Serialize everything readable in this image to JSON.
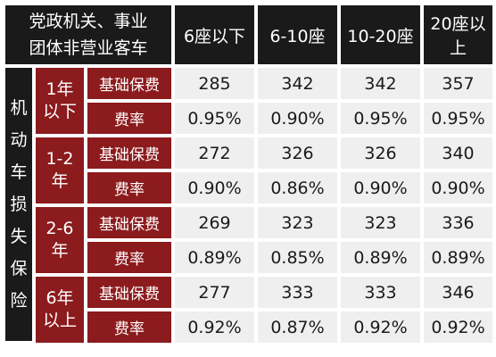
{
  "header": {
    "corner_line1": "党政机关、事业",
    "corner_line2": "团体非营业客车",
    "columns": [
      "6座以下",
      "6-10座",
      "10-20座",
      "20座以上"
    ]
  },
  "side_label": [
    "机",
    "动",
    "车",
    "损",
    "失",
    "保",
    "险"
  ],
  "groups": [
    {
      "age_line1": "1年",
      "age_line2": "以下",
      "rows": [
        {
          "label": "基础保费",
          "values": [
            "285",
            "342",
            "342",
            "357"
          ]
        },
        {
          "label": "费率",
          "values": [
            "0.95%",
            "0.90%",
            "0.95%",
            "0.95%"
          ]
        }
      ]
    },
    {
      "age_line1": "1-2",
      "age_line2": "年",
      "rows": [
        {
          "label": "基础保费",
          "values": [
            "272",
            "326",
            "326",
            "340"
          ]
        },
        {
          "label": "费率",
          "values": [
            "0.90%",
            "0.86%",
            "0.90%",
            "0.90%"
          ]
        }
      ]
    },
    {
      "age_line1": "2-6",
      "age_line2": "年",
      "rows": [
        {
          "label": "基础保费",
          "values": [
            "269",
            "323",
            "323",
            "336"
          ]
        },
        {
          "label": "费率",
          "values": [
            "0.89%",
            "0.85%",
            "0.89%",
            "0.89%"
          ]
        }
      ]
    },
    {
      "age_line1": "6年",
      "age_line2": "以上",
      "rows": [
        {
          "label": "基础保费",
          "values": [
            "277",
            "333",
            "333",
            "346"
          ]
        },
        {
          "label": "费率",
          "values": [
            "0.92%",
            "0.87%",
            "0.92%",
            "0.92%"
          ]
        }
      ]
    }
  ],
  "colors": {
    "header_bg": "#1a1a1a",
    "label_red": "#8c1b1d",
    "cell_bg": "#efefef"
  }
}
